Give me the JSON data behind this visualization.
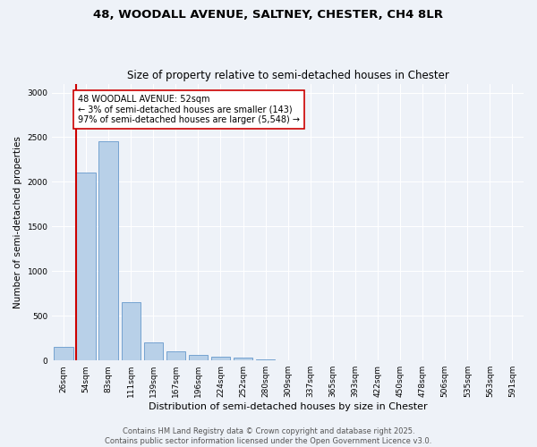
{
  "title": "48, WOODALL AVENUE, SALTNEY, CHESTER, CH4 8LR",
  "subtitle": "Size of property relative to semi-detached houses in Chester",
  "xlabel": "Distribution of semi-detached houses by size in Chester",
  "ylabel": "Number of semi-detached properties",
  "categories": [
    "26sqm",
    "54sqm",
    "83sqm",
    "111sqm",
    "139sqm",
    "167sqm",
    "196sqm",
    "224sqm",
    "252sqm",
    "280sqm",
    "309sqm",
    "337sqm",
    "365sqm",
    "393sqm",
    "422sqm",
    "450sqm",
    "478sqm",
    "506sqm",
    "535sqm",
    "563sqm",
    "591sqm"
  ],
  "values": [
    150,
    2100,
    2450,
    650,
    200,
    100,
    65,
    45,
    30,
    15,
    5,
    2,
    1,
    0,
    0,
    0,
    0,
    0,
    0,
    0,
    0
  ],
  "bar_color": "#b8d0e8",
  "bar_edge_color": "#6699cc",
  "vline_color": "#cc0000",
  "vline_x_index": 0.5,
  "annotation_text": "48 WOODALL AVENUE: 52sqm\n← 3% of semi-detached houses are smaller (143)\n97% of semi-detached houses are larger (5,548) →",
  "annotation_box_color": "#ffffff",
  "annotation_box_edge_color": "#cc0000",
  "ylim": [
    0,
    3100
  ],
  "yticks": [
    0,
    500,
    1000,
    1500,
    2000,
    2500,
    3000
  ],
  "background_color": "#eef2f8",
  "grid_color": "#ffffff",
  "footer_line1": "Contains HM Land Registry data © Crown copyright and database right 2025.",
  "footer_line2": "Contains public sector information licensed under the Open Government Licence v3.0.",
  "title_fontsize": 9.5,
  "subtitle_fontsize": 8.5,
  "ylabel_fontsize": 7.5,
  "xlabel_fontsize": 8,
  "tick_fontsize": 6.5,
  "annotation_fontsize": 7,
  "footer_fontsize": 6
}
